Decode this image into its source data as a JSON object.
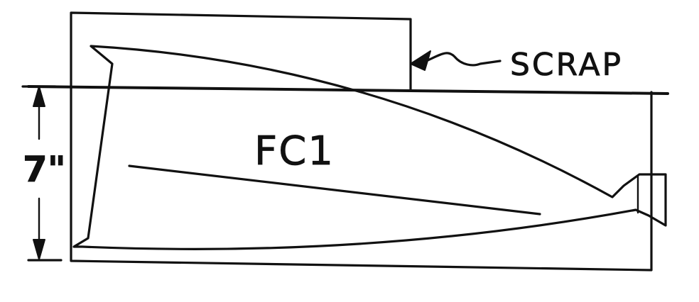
{
  "labels": {
    "scrap": "SCRAP",
    "part": "FC1",
    "dimension": "7\""
  }
}
